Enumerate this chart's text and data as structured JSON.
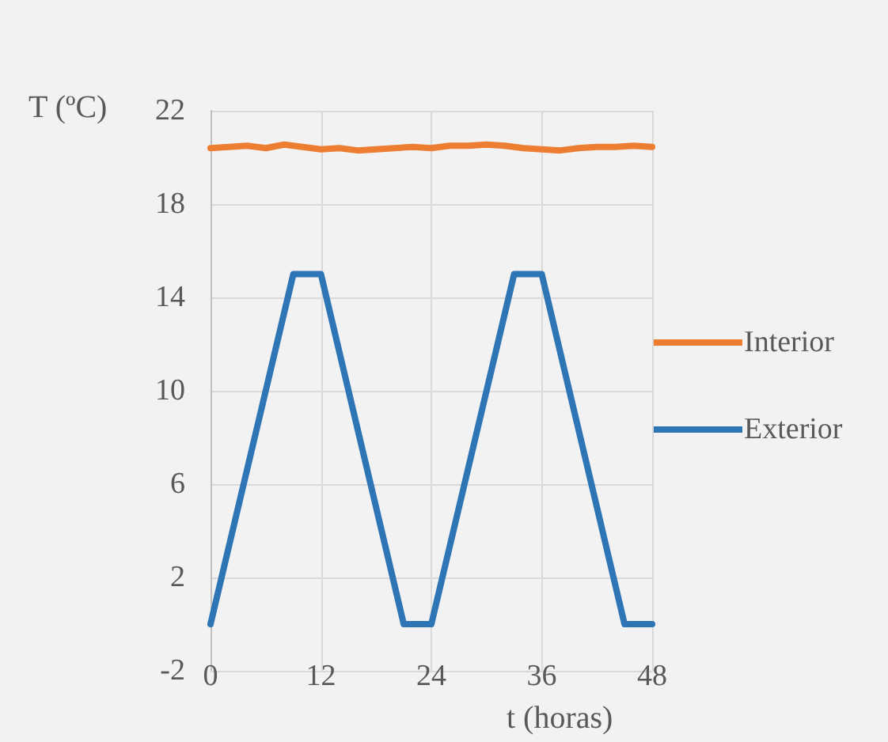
{
  "chart_data": {
    "type": "line",
    "xlabel": "t (horas)",
    "ylabel": "T (ºC)",
    "xlim": [
      0,
      48
    ],
    "xticks": [
      0,
      12,
      24,
      36,
      48
    ],
    "ylim": [
      -2,
      22
    ],
    "yticks": [
      -2,
      2,
      6,
      10,
      14,
      18,
      22
    ],
    "grid": true,
    "legend": "right",
    "marker": "none",
    "line_style": "solid",
    "series": [
      {
        "name": "Interior",
        "color": "#ed7d31",
        "x": [
          0,
          2,
          4,
          6,
          8,
          10,
          12,
          14,
          16,
          18,
          20,
          22,
          24,
          26,
          28,
          30,
          32,
          34,
          36,
          38,
          40,
          42,
          44,
          46,
          48
        ],
        "values": [
          20.4,
          20.45,
          20.5,
          20.4,
          20.55,
          20.45,
          20.35,
          20.4,
          20.3,
          20.35,
          20.4,
          20.45,
          20.4,
          20.5,
          20.5,
          20.55,
          20.5,
          20.4,
          20.35,
          20.3,
          20.4,
          20.45,
          20.45,
          20.5,
          20.45
        ]
      },
      {
        "name": "Exterior",
        "color": "#2e75b6",
        "x": [
          0,
          9,
          12,
          21,
          24,
          33,
          36,
          45,
          48
        ],
        "values": [
          0,
          15,
          15,
          0,
          0,
          15,
          15,
          0,
          0
        ]
      }
    ]
  }
}
